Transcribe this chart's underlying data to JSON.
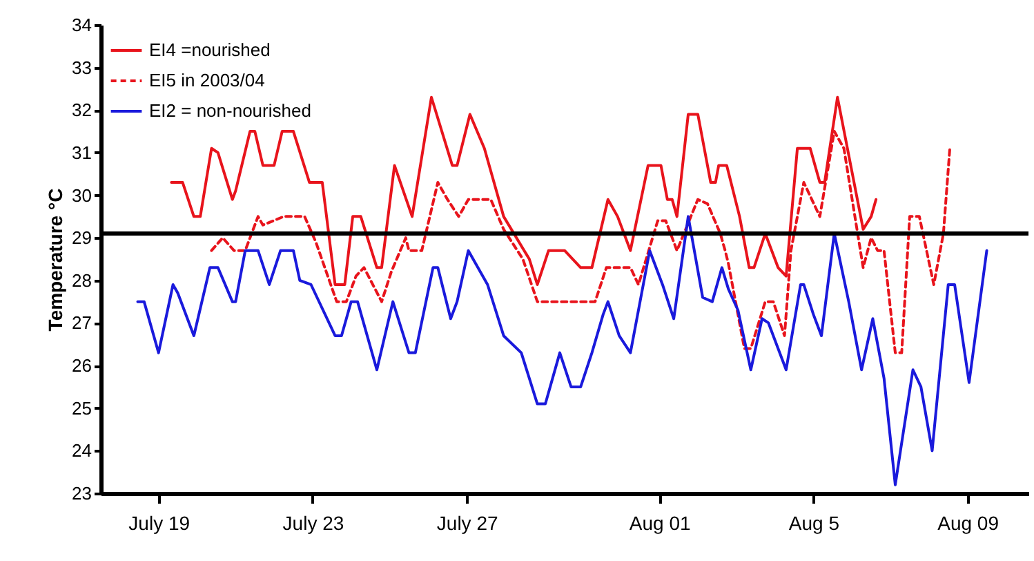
{
  "chart_data": {
    "type": "line",
    "ylabel": "Temperature °C",
    "xlim": [
      "--07-17T12:00",
      "--08-10T14:00"
    ],
    "ylim": [
      23,
      34
    ],
    "xticks": [
      {
        "value": "--07-19",
        "label": "July 19"
      },
      {
        "value": "--07-23",
        "label": "July 23"
      },
      {
        "value": "--07-27",
        "label": "July 27"
      },
      {
        "value": "--08-01",
        "label": "Aug 01"
      },
      {
        "value": "--08-05",
        "label": "Aug 5"
      },
      {
        "value": "--08-09",
        "label": "Aug 09"
      }
    ],
    "yticks": [
      23,
      24,
      25,
      26,
      27,
      28,
      29,
      30,
      31,
      32,
      33,
      34
    ],
    "legend": "top left",
    "ref_lines": [
      {
        "axis": "y",
        "value": 29.1,
        "color": "#000000"
      }
    ],
    "series": [
      {
        "name": "EI4 =nourished",
        "color": "#e8141c",
        "line_style": "solid",
        "x": [
          "--07-19T08:00",
          "--07-19T15:00",
          "--07-19T22:00",
          "--07-20T02:00",
          "--07-20T09:00",
          "--07-20T13:00",
          "--07-20T22:00",
          "--07-21T00:00",
          "--07-21T09:00",
          "--07-21T12:00",
          "--07-21T17:00",
          "--07-22T00:00",
          "--07-22T05:00",
          "--07-22T12:00",
          "--07-22T22:00",
          "--07-23T06:00",
          "--07-23T14:00",
          "--07-23T20:00",
          "--07-24T01:00",
          "--07-24T06:00",
          "--07-24T16:00",
          "--07-24T19:00",
          "--07-25T03:00",
          "--07-25T14:00",
          "--07-26T02:00",
          "--07-26T15:00",
          "--07-26T18:00",
          "--07-27T02:00",
          "--07-27T11:00",
          "--07-27T23:00",
          "--07-28T15:00",
          "--07-28T20:00",
          "--07-29T03:00",
          "--07-29T13:00",
          "--07-29T23:00",
          "--07-30T06:00",
          "--07-30T16:00",
          "--07-30T22:00",
          "--07-31T06:00",
          "--07-31T17:00",
          "--08-01T01:00",
          "--08-01T05:00",
          "--08-01T08:00",
          "--08-01T11:00",
          "--08-01T18:00",
          "--08-02T00:00",
          "--08-02T08:00",
          "--08-02T11:00",
          "--08-02T13:00",
          "--08-02T18:00",
          "--08-03T02:00",
          "--08-03T08:00",
          "--08-03T11:00",
          "--08-03T18:00",
          "--08-04T02:00",
          "--08-04T07:00",
          "--08-04T14:00",
          "--08-04T22:00",
          "--08-05T04:00",
          "--08-05T07:00",
          "--08-05T15:00",
          "--08-06T07:00",
          "--08-06T12:00",
          "--08-06T15:00"
        ],
        "values": [
          30.3,
          30.3,
          29.5,
          29.5,
          31.1,
          31.0,
          29.9,
          30.1,
          31.5,
          31.5,
          30.7,
          30.7,
          31.5,
          31.5,
          30.3,
          30.3,
          27.9,
          27.9,
          29.5,
          29.5,
          28.3,
          28.3,
          30.7,
          29.5,
          32.3,
          30.7,
          30.7,
          31.9,
          31.1,
          29.5,
          28.5,
          27.9,
          28.7,
          28.7,
          28.3,
          28.3,
          29.9,
          29.5,
          28.7,
          30.7,
          30.7,
          29.9,
          29.9,
          29.5,
          31.9,
          31.9,
          30.3,
          30.3,
          30.7,
          30.7,
          29.5,
          28.3,
          28.3,
          29.1,
          28.3,
          28.1,
          31.1,
          31.1,
          30.3,
          30.3,
          32.3,
          29.2,
          29.5,
          29.9
        ]
      },
      {
        "name": "EI5 in 2003/04",
        "color": "#e8141c",
        "line_style": "dashed",
        "x": [
          "--07-20T09:00",
          "--07-20T16:00",
          "--07-20T23:00",
          "--07-21T06:00",
          "--07-21T14:00",
          "--07-21T17:00",
          "--07-22T06:00",
          "--07-22T19:00",
          "--07-23T02:00",
          "--07-23T15:00",
          "--07-23T21:00",
          "--07-24T03:00",
          "--07-24T08:00",
          "--07-24T19:00",
          "--07-25T01:00",
          "--07-25T10:00",
          "--07-25T12:00",
          "--07-25T20:00",
          "--07-26T06:00",
          "--07-26T12:00",
          "--07-26T19:00",
          "--07-27T01:00",
          "--07-27T15:00",
          "--07-27T23:00",
          "--07-28T11:00",
          "--07-28T20:00",
          "--07-30T08:00",
          "--07-30T15:00",
          "--07-31T06:00",
          "--07-31T11:00",
          "--07-31T23:00",
          "--08-01T04:00",
          "--08-01T11:00",
          "--08-02T00:00",
          "--08-02T06:00",
          "--08-02T14:00",
          "--08-02T17:00",
          "--08-02T19:00",
          "--08-03T05:00",
          "--08-03T09:00",
          "--08-03T18:00",
          "--08-03T23:00",
          "--08-04T06:00",
          "--08-04T10:00",
          "--08-04T14:00",
          "--08-04T18:00",
          "--08-05T04:00",
          "--08-05T13:00",
          "--08-05T19:00",
          "--08-06T07:00",
          "--08-06T12:00",
          "--08-06T16:00",
          "--08-06T20:00",
          "--08-07T03:00",
          "--08-07T07:00",
          "--08-07T12:00",
          "--08-07T18:00",
          "--08-08T03:00",
          "--08-08T09:00",
          "--08-08T13:00"
        ],
        "values": [
          28.7,
          29.0,
          28.7,
          28.7,
          29.5,
          29.3,
          29.5,
          29.5,
          28.9,
          27.5,
          27.5,
          28.1,
          28.3,
          27.5,
          28.2,
          29.0,
          28.7,
          28.7,
          30.3,
          29.9,
          29.5,
          29.9,
          29.9,
          29.2,
          28.5,
          27.5,
          27.5,
          28.3,
          28.3,
          27.9,
          29.4,
          29.4,
          28.7,
          29.9,
          29.8,
          29.1,
          28.7,
          28.4,
          26.4,
          26.4,
          27.5,
          27.5,
          26.7,
          28.7,
          29.5,
          30.3,
          29.5,
          31.5,
          31.1,
          28.3,
          29.0,
          28.7,
          28.7,
          26.3,
          26.3,
          29.5,
          29.5,
          27.9,
          29.1,
          31.1
        ]
      },
      {
        "name": "EI2 = non-nourished",
        "color": "#1a1adc",
        "line_style": "solid",
        "x": [
          "--07-18T11:00",
          "--07-18T15:00",
          "--07-19T00:00",
          "--07-19T09:00",
          "--07-19T12:00",
          "--07-19T22:00",
          "--07-20T08:00",
          "--07-20T13:00",
          "--07-20T22:00",
          "--07-21T00:00",
          "--07-21T06:00",
          "--07-21T14:00",
          "--07-21T21:00",
          "--07-22T04:00",
          "--07-22T12:00",
          "--07-22T16:00",
          "--07-22T23:00",
          "--07-23T14:00",
          "--07-23T18:00",
          "--07-24T00:00",
          "--07-24T04:00",
          "--07-24T16:00",
          "--07-25T02:00",
          "--07-25T12:00",
          "--07-25T16:00",
          "--07-26T03:00",
          "--07-26T06:00",
          "--07-26T14:00",
          "--07-26T18:00",
          "--07-27T01:00",
          "--07-27T13:00",
          "--07-27T23:00",
          "--07-28T10:00",
          "--07-28T20:00",
          "--07-29T01:00",
          "--07-29T10:00",
          "--07-29T17:00",
          "--07-29T23:00",
          "--07-30T06:00",
          "--07-30T13:00",
          "--07-30T16:00",
          "--07-30T23:00",
          "--07-31T06:00",
          "--07-31T18:00",
          "--08-01T02:00",
          "--08-01T09:00",
          "--08-01T18:00",
          "--08-02T03:00",
          "--08-02T09:00",
          "--08-02T15:00",
          "--08-02T19:00",
          "--08-03T01:00",
          "--08-03T09:00",
          "--08-03T16:00",
          "--08-03T20:00",
          "--08-04T07:00",
          "--08-04T16:00",
          "--08-04T18:00",
          "--08-05T00:00",
          "--08-05T05:00",
          "--08-05T13:00",
          "--08-05T22:00",
          "--08-06T06:00",
          "--08-06T13:00",
          "--08-06T20:00",
          "--08-07T03:00",
          "--08-07T14:00",
          "--08-07T19:00",
          "--08-08T02:00",
          "--08-08T12:00",
          "--08-08T16:00",
          "--08-09T01:00",
          "--08-09T12:00"
        ],
        "values": [
          27.5,
          27.5,
          26.3,
          27.9,
          27.7,
          26.7,
          28.3,
          28.3,
          27.5,
          27.5,
          28.7,
          28.7,
          27.9,
          28.7,
          28.7,
          28.0,
          27.9,
          26.7,
          26.7,
          27.5,
          27.5,
          25.9,
          27.5,
          26.3,
          26.3,
          28.3,
          28.3,
          27.1,
          27.5,
          28.7,
          27.9,
          26.7,
          26.3,
          25.1,
          25.1,
          26.3,
          25.5,
          25.5,
          26.3,
          27.2,
          27.5,
          26.7,
          26.3,
          28.7,
          27.9,
          27.1,
          29.5,
          27.6,
          27.5,
          28.3,
          27.8,
          27.3,
          25.9,
          27.1,
          27.0,
          25.9,
          27.9,
          27.9,
          27.2,
          26.7,
          29.1,
          27.5,
          25.9,
          27.1,
          25.7,
          23.2,
          25.9,
          25.5,
          24.0,
          27.9,
          27.9,
          25.6,
          28.7
        ]
      }
    ]
  }
}
